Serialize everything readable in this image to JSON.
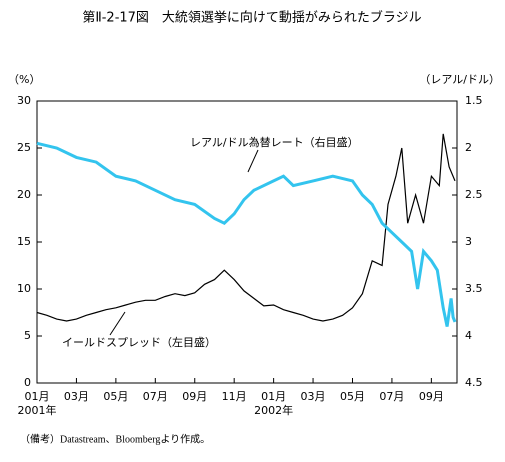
{
  "chart_data": {
    "type": "line",
    "title": "第Ⅱ-2-17図　大統領選挙に向けて動揺がみられたブラジル",
    "y_axis_label": "（%）",
    "y2_axis_label": "（レアル/ドル）",
    "note": "（備考）Datastream、Bloombergより作成。",
    "xlim": [
      0,
      21.3
    ],
    "xticks": [
      {
        "value": 0,
        "label": "01月"
      },
      {
        "value": 2,
        "label": "03月"
      },
      {
        "value": 4,
        "label": "05月"
      },
      {
        "value": 6,
        "label": "07月"
      },
      {
        "value": 8,
        "label": "09月"
      },
      {
        "value": 10,
        "label": "11月"
      },
      {
        "value": 12,
        "label": "01月"
      },
      {
        "value": 14,
        "label": "03月"
      },
      {
        "value": 16,
        "label": "05月"
      },
      {
        "value": 18,
        "label": "07月"
      },
      {
        "value": 20,
        "label": "09月"
      }
    ],
    "x_year_labels": [
      {
        "value": 0,
        "label": "2001年"
      },
      {
        "value": 12,
        "label": "2002年"
      }
    ],
    "ylim": [
      0,
      30
    ],
    "yticks": [
      0,
      5,
      10,
      15,
      20,
      25,
      30
    ],
    "y2lim": [
      4.5,
      1.5
    ],
    "y2ticks": [
      1.5,
      2,
      2.5,
      3,
      3.5,
      4,
      4.5
    ],
    "series": [
      {
        "name": "イールドスプレッド（左目盛）",
        "color": "#000000",
        "x": [
          0,
          0.5,
          1,
          1.5,
          2,
          2.5,
          3,
          3.5,
          4,
          4.5,
          5,
          5.5,
          6,
          6.5,
          7,
          7.5,
          8,
          8.5,
          9,
          9.5,
          10,
          10.5,
          11,
          11.5,
          12,
          12.5,
          13,
          13.5,
          14,
          14.5,
          15,
          15.5,
          16,
          16.5,
          17,
          17.5,
          17.8,
          18.2,
          18.5,
          18.8,
          19.2,
          19.6,
          20,
          20.4,
          20.6,
          20.9,
          21.2
        ],
        "values": [
          7.5,
          7.2,
          6.8,
          6.6,
          6.8,
          7.2,
          7.5,
          7.8,
          8,
          8.3,
          8.6,
          8.8,
          8.8,
          9.2,
          9.5,
          9.3,
          9.6,
          10.5,
          11,
          12,
          11,
          9.8,
          9,
          8.2,
          8.3,
          7.8,
          7.5,
          7.2,
          6.8,
          6.6,
          6.8,
          7.2,
          8,
          9.5,
          13,
          12.5,
          19,
          22,
          25,
          17,
          20,
          17,
          22,
          21,
          26.5,
          23,
          21.5
        ]
      },
      {
        "name": "レアル/ドル為替レート（右目盛）",
        "color": "#33c4ee",
        "axis": "y2",
        "x": [
          0,
          1,
          2,
          3,
          4,
          5,
          6,
          7,
          8,
          9,
          9.5,
          10,
          10.5,
          11,
          12,
          12.5,
          13,
          14,
          15,
          16,
          16.5,
          17,
          17.5,
          18,
          18.5,
          19,
          19.3,
          19.6,
          20,
          20.3,
          20.6,
          20.8,
          21,
          21.1,
          21.2
        ],
        "values": [
          1.95,
          2.0,
          2.1,
          2.15,
          2.3,
          2.35,
          2.45,
          2.55,
          2.6,
          2.75,
          2.8,
          2.7,
          2.55,
          2.45,
          2.35,
          2.3,
          2.4,
          2.35,
          2.3,
          2.35,
          2.5,
          2.6,
          2.8,
          2.9,
          3.0,
          3.1,
          3.5,
          3.1,
          3.2,
          3.3,
          3.7,
          3.9,
          3.6,
          3.8,
          3.85
        ]
      }
    ]
  }
}
